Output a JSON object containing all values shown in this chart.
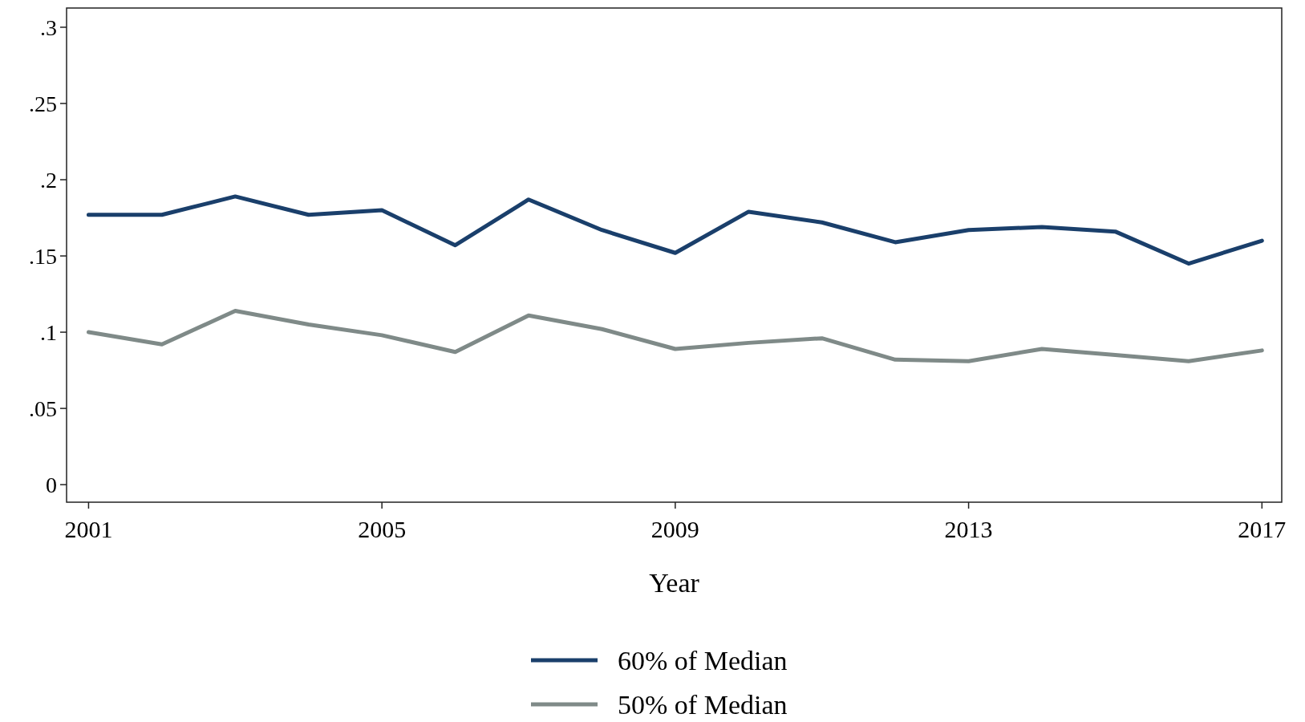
{
  "chart_data": {
    "type": "line",
    "xlabel": "Year",
    "x": [
      2001,
      2002,
      2003,
      2004,
      2005,
      2006,
      2007,
      2008,
      2009,
      2010,
      2011,
      2012,
      2013,
      2014,
      2015,
      2016,
      2017
    ],
    "series": [
      {
        "name": "60% of Median",
        "color": "#1a3f6b",
        "values": [
          0.177,
          0.177,
          0.189,
          0.177,
          0.18,
          0.157,
          0.187,
          0.167,
          0.152,
          0.179,
          0.172,
          0.159,
          0.167,
          0.169,
          0.166,
          0.145,
          0.16
        ]
      },
      {
        "name": "50% of Median",
        "color": "#7f8a88",
        "values": [
          0.1,
          0.092,
          0.114,
          0.105,
          0.098,
          0.087,
          0.111,
          0.102,
          0.089,
          0.093,
          0.096,
          0.082,
          0.081,
          0.089,
          0.085,
          0.081,
          0.088
        ]
      }
    ],
    "xlim": [
      2000.7,
      2017.27
    ],
    "xticks": [
      2001,
      2005,
      2009,
      2013,
      2017
    ],
    "ylim": [
      -0.0115,
      0.3126
    ],
    "yticks": [
      {
        "value": 0,
        "label": "0"
      },
      {
        "value": 0.05,
        "label": ".05"
      },
      {
        "value": 0.1,
        "label": ".1"
      },
      {
        "value": 0.15,
        "label": ".15"
      },
      {
        "value": 0.2,
        "label": ".2"
      },
      {
        "value": 0.25,
        "label": ".25"
      },
      {
        "value": 0.3,
        "label": ".3"
      }
    ],
    "grid": false,
    "legend": "bottom",
    "line_style": "solid",
    "marker": "none"
  }
}
